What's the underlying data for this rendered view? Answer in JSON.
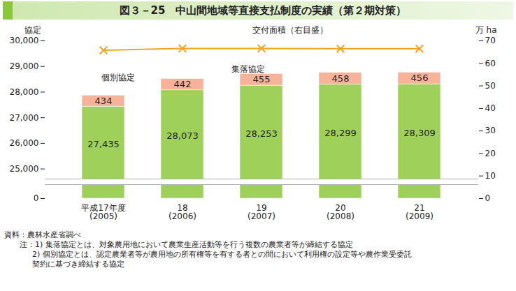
{
  "chart_data": {
    "type": "bar",
    "title": "図３－25　中山間地域等直接支払制度の実績（第２期対策）",
    "categories": [
      "平成17年度\n(2005)",
      "18\n(2006)",
      "19\n(2007)",
      "20\n(2008)",
      "21\n(2009)"
    ],
    "series": [
      {
        "name": "集落協定",
        "color": "#9fd15a",
        "values": [
          27435,
          28073,
          28253,
          28299,
          28309
        ],
        "value_labels": [
          "27,435",
          "28,073",
          "28,253",
          "28,299",
          "28,309"
        ]
      },
      {
        "name": "個別協定",
        "color": "#f7b39a",
        "values": [
          434,
          442,
          455,
          458,
          456
        ]
      },
      {
        "name": "交付面積（右目盛）",
        "type": "line",
        "axis": "y2",
        "color": "#f5a31a",
        "marker": "x",
        "values": [
          65.8,
          66.6,
          66.6,
          66.5,
          66.5
        ]
      }
    ],
    "stacked": true,
    "data_labels": true,
    "ylabel": "協定",
    "y2label": "万 ha",
    "ylim": [
      0,
      30000
    ],
    "yticks": [
      0,
      {
        "value": 25000,
        "label": "25,000"
      },
      {
        "value": 26000,
        "label": "26,000"
      },
      {
        "value": 27000,
        "label": "27,000"
      },
      {
        "value": 28000,
        "label": "28,000"
      },
      {
        "value": 29000,
        "label": "29,000"
      },
      {
        "value": 30000,
        "label": "30,000"
      }
    ],
    "y2lim": [
      0,
      70
    ],
    "y2ticks": [
      0,
      10,
      20,
      30,
      40,
      50,
      60,
      70
    ],
    "source": "資料：農林水産省調べ",
    "notes": [
      "注：1) 集落協定とは、対象農用地において農業生産活動等を行う複数の農業者等が締結する協定",
      "2) 個別協定とは、認定農業者等が農用地の所有権等を有する者との間において利用権の設定等や農作業受委託",
      "契約に基づき締結する協定"
    ]
  }
}
